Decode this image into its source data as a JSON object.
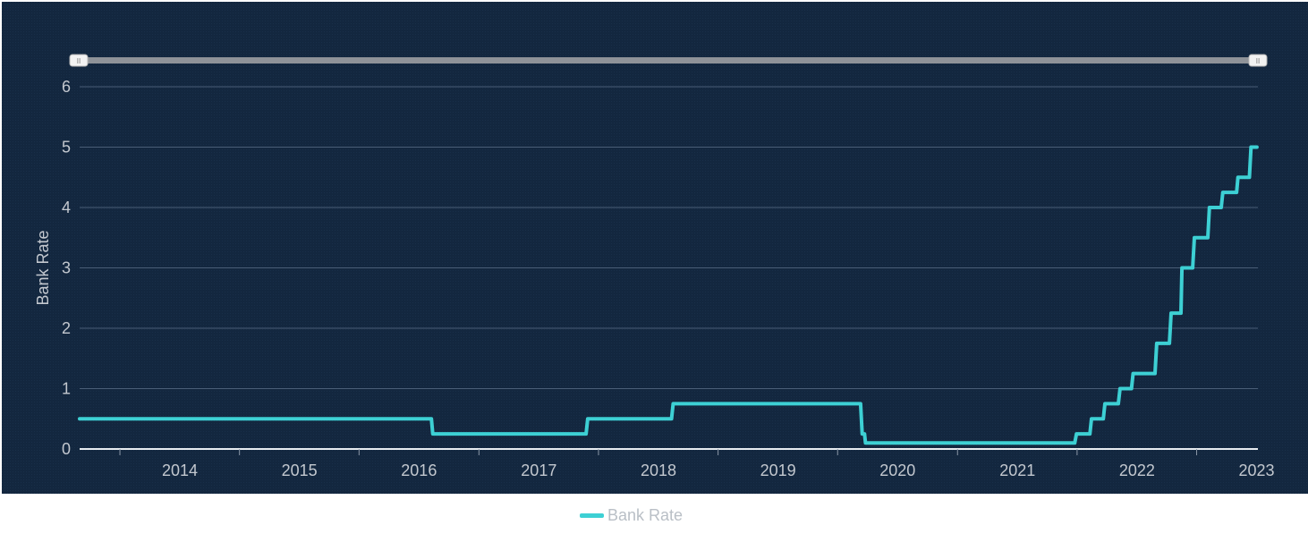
{
  "chart_data": {
    "type": "line",
    "step": true,
    "title": "",
    "xlabel": "",
    "ylabel": "Bank Rate",
    "ylim": [
      0,
      6
    ],
    "yticks": [
      "0",
      "1",
      "2",
      "3",
      "4",
      "5",
      "6"
    ],
    "xlim": [
      "2013-03-01",
      "2023-01-05"
    ],
    "xticks": [
      "2014",
      "2015",
      "2016",
      "2017",
      "2018",
      "2019",
      "2020",
      "2021",
      "2022",
      "2023"
    ],
    "grid": true,
    "legend": "bottom-center",
    "series": [
      {
        "name": "Bank Rate",
        "color": "#3dd0d4",
        "points": [
          [
            "2013-03-01",
            0.5
          ],
          [
            "2016-02-08",
            0.5
          ],
          [
            "2016-02-12",
            0.25
          ],
          [
            "2017-05-25",
            0.25
          ],
          [
            "2017-05-30",
            0.5
          ],
          [
            "2018-02-10",
            0.5
          ],
          [
            "2018-02-15",
            0.75
          ],
          [
            "2019-09-10",
            0.75
          ],
          [
            "2019-09-15",
            0.25
          ],
          [
            "2019-09-22",
            0.25
          ],
          [
            "2019-09-25",
            0.1
          ],
          [
            "2021-06-25",
            0.1
          ],
          [
            "2021-06-30",
            0.25
          ],
          [
            "2021-08-10",
            0.25
          ],
          [
            "2021-08-15",
            0.5
          ],
          [
            "2021-09-20",
            0.5
          ],
          [
            "2021-09-25",
            0.75
          ],
          [
            "2021-11-05",
            0.75
          ],
          [
            "2021-11-10",
            1.0
          ],
          [
            "2021-12-15",
            1.0
          ],
          [
            "2021-12-20",
            1.25
          ],
          [
            "2022-02-25",
            1.25
          ],
          [
            "2022-03-02",
            1.75
          ],
          [
            "2022-04-10",
            1.75
          ],
          [
            "2022-04-15",
            2.25
          ],
          [
            "2022-05-15",
            2.25
          ],
          [
            "2022-05-18",
            3.0
          ],
          [
            "2022-06-20",
            3.0
          ],
          [
            "2022-06-25",
            3.5
          ],
          [
            "2022-08-05",
            3.5
          ],
          [
            "2022-08-10",
            4.0
          ],
          [
            "2022-09-15",
            4.0
          ],
          [
            "2022-09-20",
            4.25
          ],
          [
            "2022-11-01",
            4.25
          ],
          [
            "2022-11-05",
            4.5
          ],
          [
            "2022-12-10",
            4.5
          ],
          [
            "2022-12-15",
            5.0
          ],
          [
            "2023-01-02",
            5.0
          ]
        ]
      }
    ]
  },
  "navigator": {
    "handle_glyph": "II"
  },
  "legend": {
    "label": "Bank Rate"
  }
}
